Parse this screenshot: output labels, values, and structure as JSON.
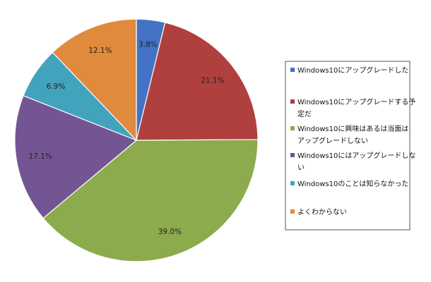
{
  "chart_data": {
    "type": "pie",
    "title": "",
    "start_angle_deg": 0,
    "direction": "clockwise",
    "legend_position": "right",
    "slices": [
      {
        "label_lines": [
          "Windows10にアップグレードした"
        ],
        "value": 3.8,
        "display": "3.8%",
        "color": "#4472c4"
      },
      {
        "label_lines": [
          "Windows10にアップグレードする予",
          "定だ"
        ],
        "value": 21.1,
        "display": "21.1%",
        "color": "#b0403e"
      },
      {
        "label_lines": [
          "Windows10に興味はあるは当面は",
          "アップグレードしない"
        ],
        "value": 39.0,
        "display": "39.0%",
        "color": "#8bab4c"
      },
      {
        "label_lines": [
          "Windows10にはアップグレードしな",
          "い"
        ],
        "value": 17.1,
        "display": "17.1%",
        "color": "#735593"
      },
      {
        "label_lines": [
          "Windows10のことは知らなかった"
        ],
        "value": 6.9,
        "display": "6.9%",
        "color": "#42a3bd"
      },
      {
        "label_lines": [
          "よくわからない"
        ],
        "value": 12.1,
        "display": "12.1%",
        "color": "#e08a3d"
      }
    ]
  }
}
